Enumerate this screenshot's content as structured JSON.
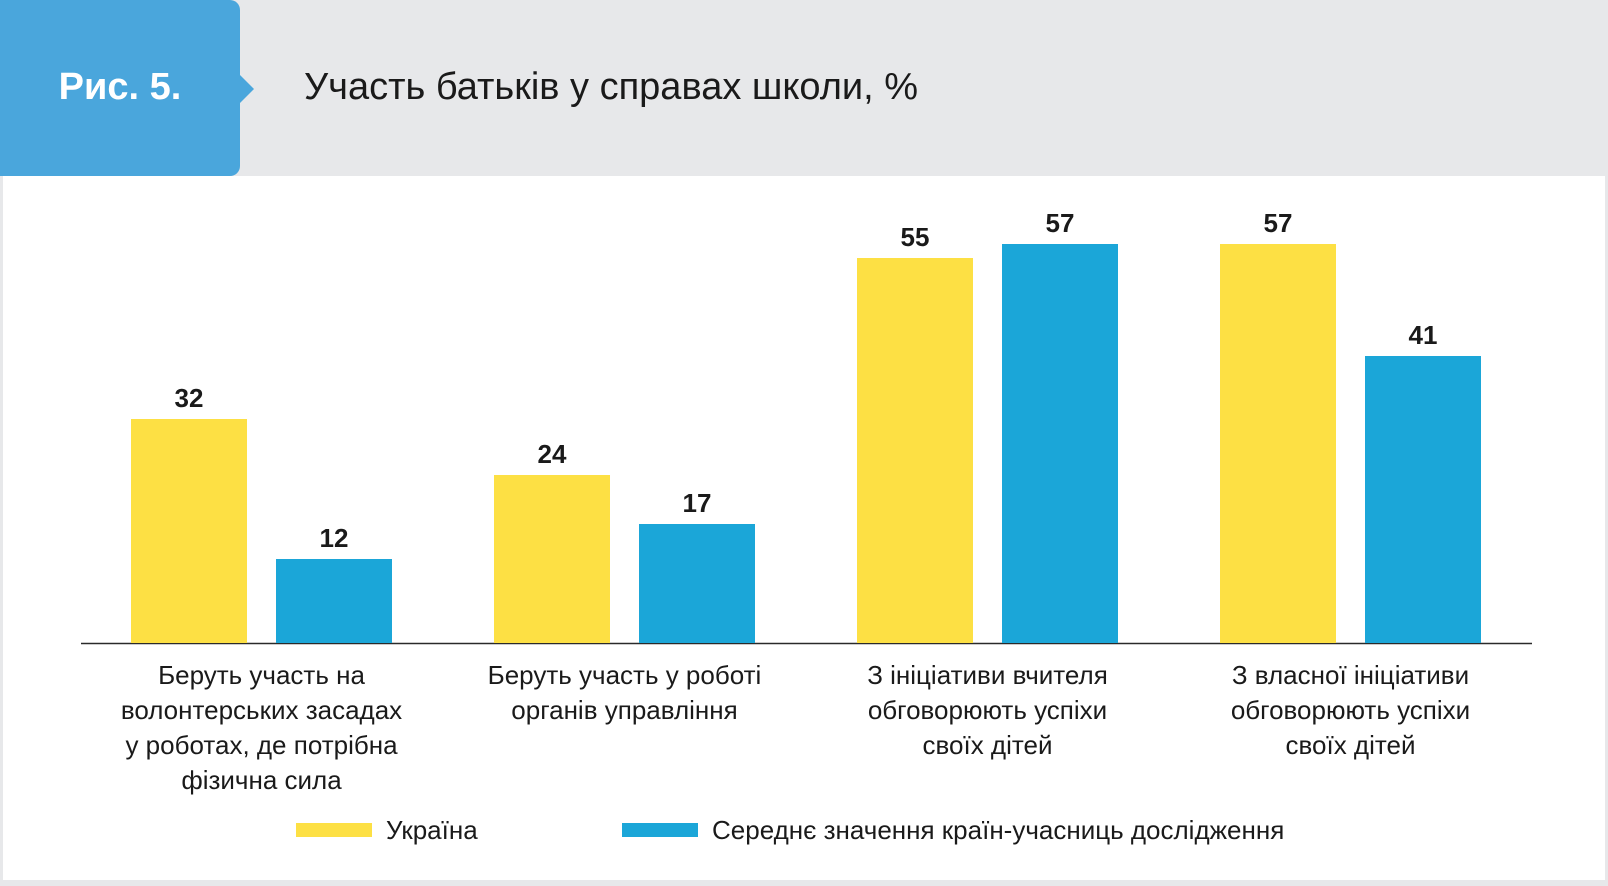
{
  "figure": {
    "label": "Рис. 5.",
    "title": "Участь батьків у справах школи, %"
  },
  "colors": {
    "header_bg": "#e7e8ea",
    "tab_bg": "#4aa6dc",
    "ukraine": "#fde044",
    "average": "#1ba6d8"
  },
  "chart_data": {
    "type": "bar",
    "title": "Участь батьків у справах школи, %",
    "ylim": [
      0,
      60
    ],
    "grid": false,
    "legend_placement": "bottom",
    "categories": [
      "Беруть участь на волонтерських засадах у роботах, де потрібна фізична сила",
      "Беруть участь у роботі органів управління",
      "З ініціативи вчителя обговорюють успіхи своїх дітей",
      "З власної ініціативи обговорюють успіхи своїх дітей"
    ],
    "category_lines": [
      [
        "Беруть участь на",
        "волонтерських засадах",
        "у роботах, де потрібна",
        "фізична сила"
      ],
      [
        "Беруть участь у роботі",
        "органів управління"
      ],
      [
        "З ініціативи вчителя",
        "обговорюють успіхи",
        "своїх дітей"
      ],
      [
        "З власної ініціативи",
        "обговорюють успіхи",
        "своїх дітей"
      ]
    ],
    "series": [
      {
        "name": "Україна",
        "color": "#fde044",
        "values": [
          32,
          24,
          55,
          57
        ]
      },
      {
        "name": "Середнє значення країн-учасниць дослідження",
        "color": "#1ba6d8",
        "values": [
          12,
          17,
          57,
          41
        ]
      }
    ]
  }
}
